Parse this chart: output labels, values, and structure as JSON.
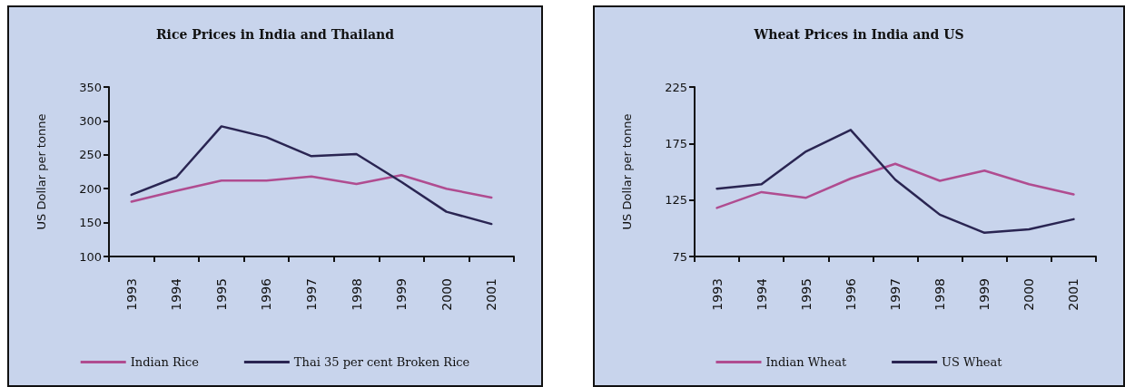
{
  "chart_data": [
    {
      "type": "line",
      "title": "Rice Prices in India and Thailand",
      "ylabel": "US Dollar per tonne",
      "categories": [
        "1993",
        "1994",
        "1995",
        "1996",
        "1997",
        "1998",
        "1999",
        "2000",
        "2001"
      ],
      "series": [
        {
          "name": "Indian Rice",
          "color": "#b04c90",
          "values": [
            181,
            197,
            212,
            212,
            218,
            207,
            220,
            200,
            187
          ]
        },
        {
          "name": "Thai 35 per cent Broken Rice",
          "color": "#2a2552",
          "values": [
            191,
            217,
            292,
            276,
            248,
            251,
            210,
            166,
            148
          ]
        }
      ],
      "ylim": [
        100,
        350
      ],
      "yticks": [
        100,
        150,
        200,
        250,
        300,
        350
      ],
      "grid": false,
      "legend": "bottom",
      "marker": "none",
      "line_style": "solid"
    },
    {
      "type": "line",
      "title": "Wheat Prices in India and US",
      "ylabel": "US Dollar per tonne",
      "categories": [
        "1993",
        "1994",
        "1995",
        "1996",
        "1997",
        "1998",
        "1999",
        "2000",
        "2001"
      ],
      "series": [
        {
          "name": "Indian Wheat",
          "color": "#b04c90",
          "values": [
            118,
            132,
            127,
            144,
            157,
            142,
            151,
            139,
            130
          ]
        },
        {
          "name": "US Wheat",
          "color": "#2a2552",
          "values": [
            135,
            139,
            168,
            187,
            143,
            112,
            96,
            99,
            108
          ]
        }
      ],
      "ylim": [
        75,
        225
      ],
      "yticks": [
        75,
        125,
        175,
        225
      ],
      "grid": false,
      "legend": "bottom",
      "marker": "none",
      "line_style": "solid"
    }
  ]
}
